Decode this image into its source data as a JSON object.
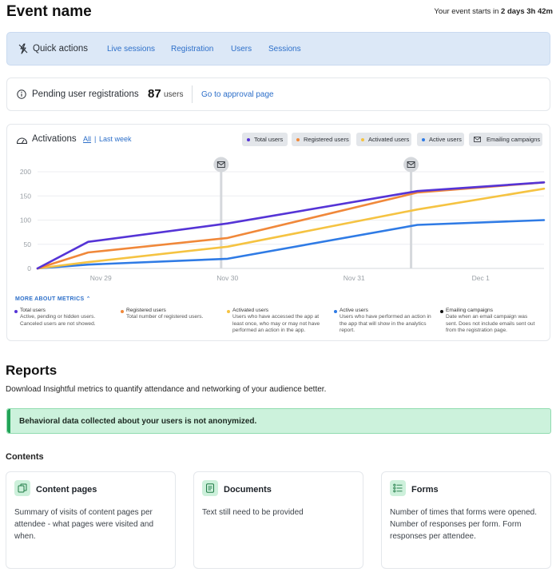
{
  "header": {
    "title": "Event name",
    "countdown_prefix": "Your event starts in",
    "countdown_value": "2 days 3h 42m"
  },
  "quick_actions": {
    "title": "Quick actions",
    "links": [
      "Live sessions",
      "Registration",
      "Users",
      "Sessions"
    ]
  },
  "pending": {
    "title": "Pending user registrations",
    "count": "87",
    "unit": "users",
    "link": "Go to approval page"
  },
  "activations": {
    "title": "Activations",
    "range_all": "All",
    "range_sep": "|",
    "range_last_week": "Last week",
    "filters": [
      {
        "label": "Total users",
        "color": "#5534d6"
      },
      {
        "label": "Registered users",
        "color": "#f0883a"
      },
      {
        "label": "Activated users",
        "color": "#f5c342"
      },
      {
        "label": "Active users",
        "color": "#2f7be5"
      },
      {
        "label": "Emailing campaigns",
        "color": "#111111"
      }
    ],
    "more_label": "MORE ABOUT METRICS",
    "legend": [
      {
        "name": "Total users",
        "desc": "Active, pending or hidden users. Canceled users are not showed.",
        "color": "#5534d6"
      },
      {
        "name": "Registered users",
        "desc": "Total number of registered users.",
        "color": "#f0883a"
      },
      {
        "name": "Activated users",
        "desc": "Users who have accessed the app at least once, who may or may not have performed an action in the app.",
        "color": "#f5c342"
      },
      {
        "name": "Active users",
        "desc": "Users who have performed an action in the app that will show in the analytics report.",
        "color": "#2f7be5"
      },
      {
        "name": "Emailing campaigns",
        "desc": "Date when an email campaign was sent. Does not include emails sent out from the registration page.",
        "color": "#111111"
      }
    ]
  },
  "chart_data": {
    "type": "line",
    "title": "Activations",
    "x": [
      0,
      0.4,
      1.5,
      3.0,
      4.0
    ],
    "tick_labels": [
      "Nov 29",
      "Nov 30",
      "Nov 31",
      "Dec 1"
    ],
    "tick_positions": [
      0.5,
      1.5,
      2.5,
      3.5
    ],
    "xlim": [
      0,
      4
    ],
    "ylim": [
      0,
      200
    ],
    "yticks": [
      0,
      50,
      100,
      150,
      200
    ],
    "grid": true,
    "series": [
      {
        "name": "Total users",
        "color": "#5534d6",
        "values": [
          0,
          55,
          93,
          160,
          178
        ]
      },
      {
        "name": "Registered users",
        "color": "#f0883a",
        "values": [
          0,
          33,
          63,
          157,
          178
        ]
      },
      {
        "name": "Activated users",
        "color": "#f5c342",
        "values": [
          0,
          13,
          45,
          122,
          165
        ]
      },
      {
        "name": "Active users",
        "color": "#2f7be5",
        "values": [
          0,
          8,
          20,
          90,
          100
        ]
      }
    ],
    "email_campaigns_x": [
      1.45,
      2.95
    ]
  },
  "reports": {
    "title": "Reports",
    "subtitle": "Download Insightful metrics to quantify attendance and networking of your audience better.",
    "alert": "Behavioral data collected about your users is not anonymized.",
    "contents_title": "Contents",
    "cards": [
      {
        "title": "Content pages",
        "desc": "Summary of visits of content pages per attendee - what pages were visited and when.",
        "icon": "copy-icon"
      },
      {
        "title": "Documents",
        "desc": "Text still need to be provided",
        "icon": "document-icon"
      },
      {
        "title": "Forms",
        "desc": "Number of times that forms were opened. Number of responses per form. Form responses per attendee.",
        "icon": "form-list-icon"
      }
    ]
  },
  "colors": {
    "accent": "#2d6fc9",
    "quick_bg": "#dce8f7",
    "alert_bg": "#ccf2dc",
    "alert_bar": "#22a357"
  }
}
